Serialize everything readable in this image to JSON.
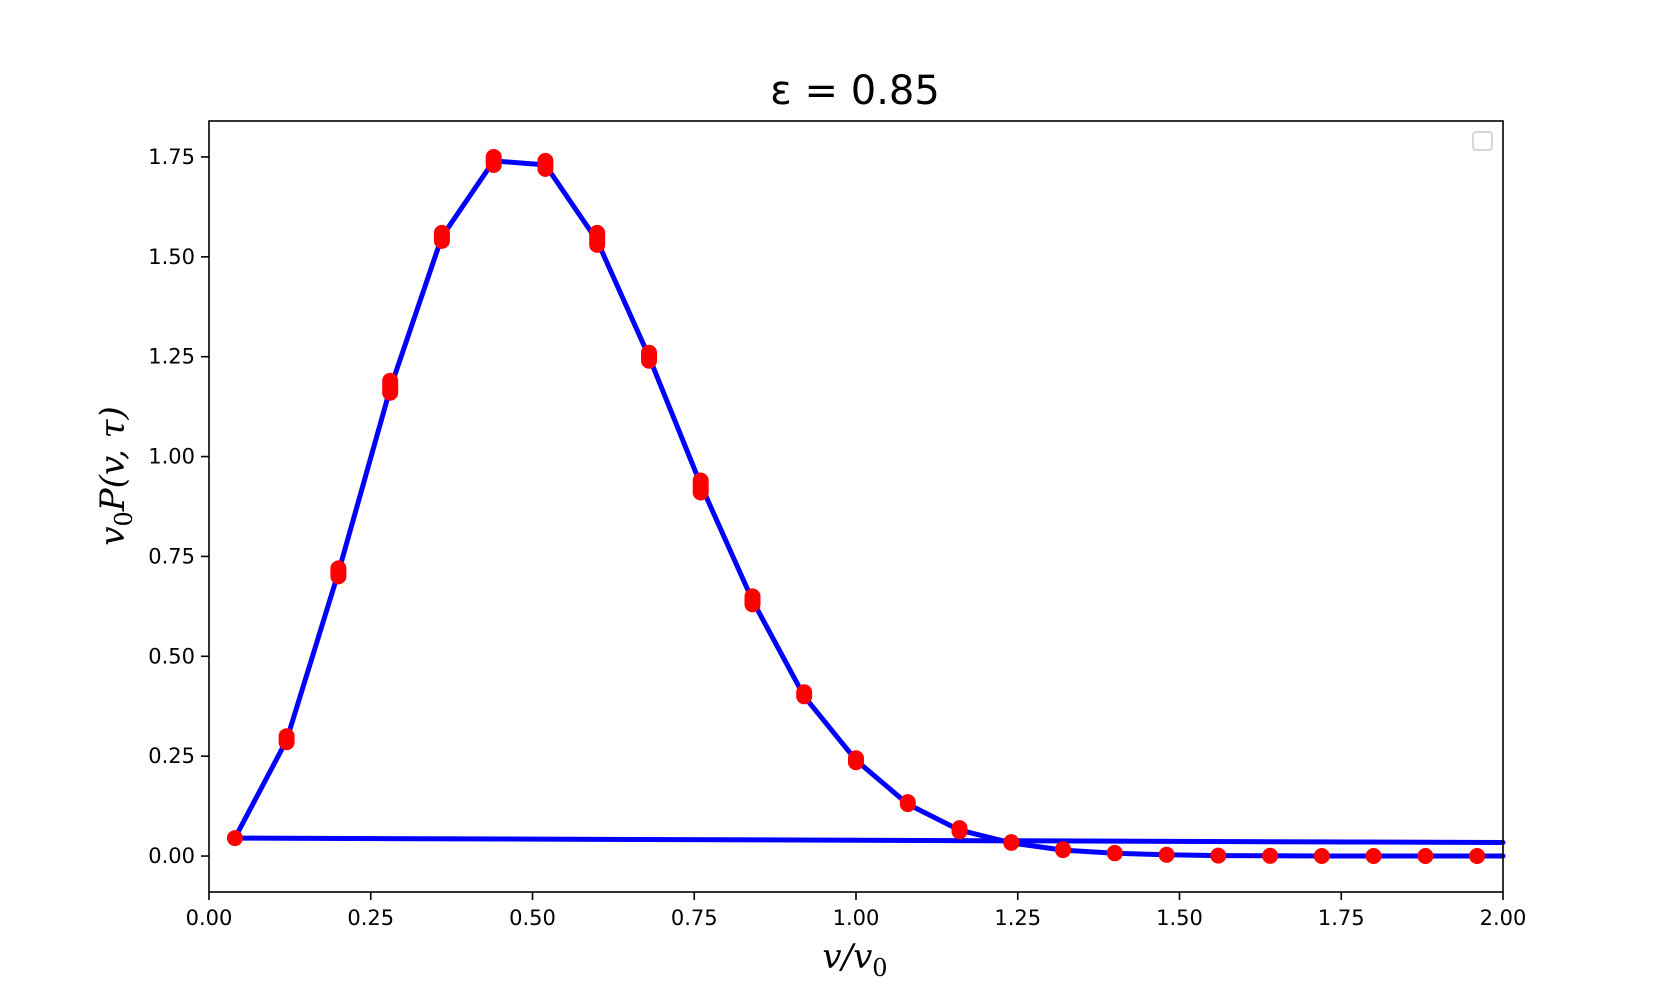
{
  "chart_data": {
    "type": "line",
    "title": "ε = 0.85",
    "xlabel": "v/v0",
    "ylabel": "v0P(v, τ)",
    "xlim": [
      0.0,
      2.0
    ],
    "ylim": [
      -0.09,
      1.84
    ],
    "x_ticks": [
      "0.00",
      "0.25",
      "0.50",
      "0.75",
      "1.00",
      "1.25",
      "1.50",
      "1.75",
      "2.00"
    ],
    "y_ticks": [
      "0.00",
      "0.25",
      "0.50",
      "0.75",
      "1.00",
      "1.25",
      "1.50",
      "1.75"
    ],
    "grid": false,
    "legend": "top-right (empty)",
    "colors": {
      "line": "#0000ff",
      "markers": "#ff0000"
    },
    "series": [
      {
        "style": "line",
        "x": [
          0.04,
          0.12,
          0.2,
          0.28,
          0.36,
          0.44,
          0.52,
          0.6,
          0.68,
          0.76,
          0.84,
          0.92,
          1.0,
          1.08,
          1.16,
          1.24,
          1.32,
          1.4,
          1.48,
          1.56,
          1.64,
          1.72,
          1.8,
          1.88,
          1.96,
          2.0
        ],
        "y": [
          0.045,
          0.29,
          0.71,
          1.17,
          1.55,
          1.74,
          1.73,
          1.54,
          1.25,
          0.93,
          0.64,
          0.4,
          0.24,
          0.13,
          0.065,
          0.033,
          0.015,
          0.007,
          0.003,
          0.001,
          0.0005,
          0.0002,
          0.0001,
          0.0,
          0.0,
          0.0
        ]
      },
      {
        "style": "line",
        "x": [
          0.04,
          2.0
        ],
        "y": [
          0.045,
          0.034
        ]
      },
      {
        "style": "markers",
        "x": [
          0.04,
          0.12,
          0.2,
          0.28,
          0.36,
          0.44,
          0.52,
          0.6,
          0.68,
          0.76,
          0.84,
          0.92,
          1.0,
          1.08,
          1.16,
          1.24,
          1.32,
          1.4,
          1.48,
          1.56,
          1.64,
          1.72,
          1.8,
          1.88,
          1.96
        ],
        "y_low": [
          0.045,
          0.285,
          0.7,
          1.16,
          1.54,
          1.73,
          1.72,
          1.53,
          1.24,
          0.91,
          0.63,
          0.4,
          0.235,
          0.13,
          0.062,
          0.033,
          0.015,
          0.007,
          0.003,
          0.001,
          0.0005,
          0.0002,
          0.0001,
          0.0,
          0.0
        ],
        "y_high": [
          0.045,
          0.3,
          0.72,
          1.19,
          1.56,
          1.75,
          1.74,
          1.56,
          1.26,
          0.94,
          0.65,
          0.41,
          0.245,
          0.135,
          0.07,
          0.035,
          0.017,
          0.008,
          0.003,
          0.001,
          0.0005,
          0.0002,
          0.0001,
          0.0,
          0.0
        ]
      }
    ]
  }
}
